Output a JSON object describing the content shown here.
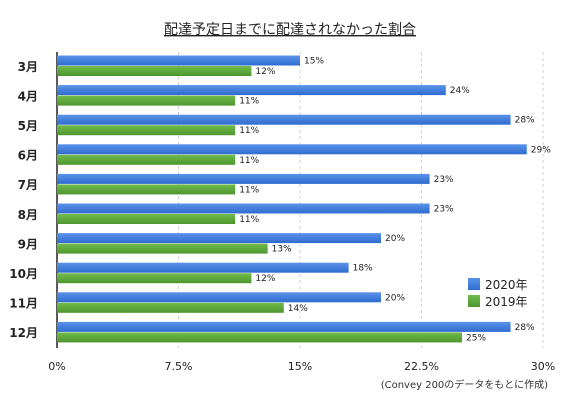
{
  "chart_data": {
    "type": "bar",
    "orientation": "horizontal",
    "title": "配達予定日までに配達されなかった割合",
    "categories": [
      "3月",
      "4月",
      "5月",
      "6月",
      "7月",
      "8月",
      "9月",
      "10月",
      "11月",
      "12月"
    ],
    "series": [
      {
        "name": "2020年",
        "color": "#3b78d8",
        "values": [
          15,
          24,
          28,
          29,
          23,
          23,
          20,
          18,
          20,
          28
        ]
      },
      {
        "name": "2019年",
        "color": "#5aa537",
        "values": [
          12,
          11,
          11,
          11,
          11,
          11,
          13,
          12,
          14,
          25
        ]
      }
    ],
    "value_suffix": "%",
    "xlim": [
      0,
      30
    ],
    "xticks": [
      0,
      7.5,
      15,
      22.5,
      30
    ],
    "xtick_labels": [
      "0%",
      "7.5%",
      "15%",
      "22.5%",
      "30%"
    ],
    "grid": "vertical-dashed",
    "legend": "bottom-right",
    "note": "(Convey 200のデータをもとに作成)"
  }
}
